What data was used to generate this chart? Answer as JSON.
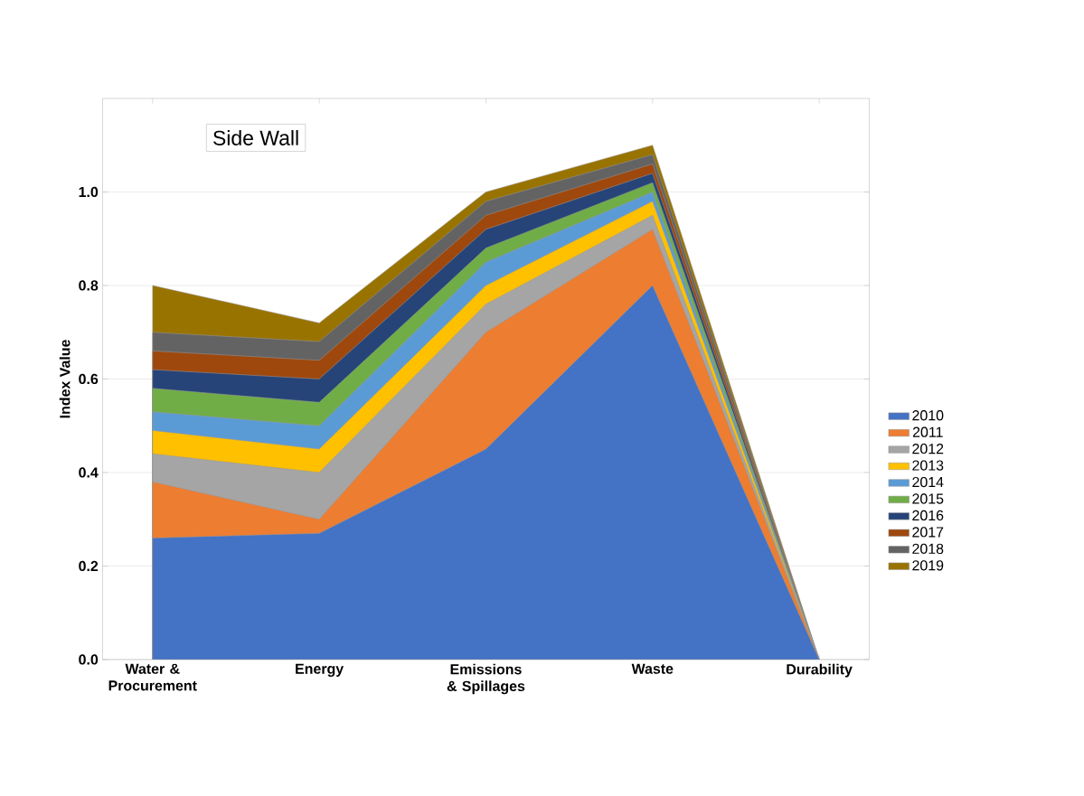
{
  "chart_data": {
    "type": "area",
    "ylabel": "Index Value",
    "categories": [
      "Water & Procurement",
      "Energy",
      "Emissions & Spillages",
      "Waste",
      "Durability"
    ],
    "series": [
      {
        "name": "2010",
        "color": "#4472c4",
        "values": [
          0.26,
          0.27,
          0.45,
          0.8,
          0
        ]
      },
      {
        "name": "2011",
        "color": "#ed7d31",
        "values": [
          0.38,
          0.3,
          0.7,
          0.92,
          0
        ]
      },
      {
        "name": "2012",
        "color": "#a5a5a5",
        "values": [
          0.44,
          0.4,
          0.76,
          0.95,
          0
        ]
      },
      {
        "name": "2013",
        "color": "#ffc000",
        "values": [
          0.49,
          0.45,
          0.8,
          0.98,
          0
        ]
      },
      {
        "name": "2014",
        "color": "#5b9bd5",
        "values": [
          0.53,
          0.5,
          0.85,
          1.0,
          0
        ]
      },
      {
        "name": "2015",
        "color": "#70ad47",
        "values": [
          0.58,
          0.55,
          0.88,
          1.02,
          0
        ]
      },
      {
        "name": "2016",
        "color": "#264478",
        "values": [
          0.62,
          0.6,
          0.92,
          1.04,
          0
        ]
      },
      {
        "name": "2017",
        "color": "#9e480e",
        "values": [
          0.66,
          0.64,
          0.95,
          1.06,
          0
        ]
      },
      {
        "name": "2018",
        "color": "#636363",
        "values": [
          0.7,
          0.68,
          0.98,
          1.08,
          0
        ]
      },
      {
        "name": "2019",
        "color": "#997300",
        "values": [
          0.8,
          0.72,
          1.0,
          1.1,
          0
        ]
      }
    ],
    "ylim": [
      0,
      1.2
    ],
    "yticks": [
      {
        "value": 0,
        "label": "0.0"
      },
      {
        "value": 0.2,
        "label": "0.2"
      },
      {
        "value": 0.4,
        "label": "0.4"
      },
      {
        "value": 0.6,
        "label": "0.6"
      },
      {
        "value": 0.8,
        "label": "0.8"
      },
      {
        "value": 1.0,
        "label": "1.0"
      }
    ],
    "grid": "y",
    "legend": "right",
    "annotations": [
      "Side Wall"
    ]
  }
}
